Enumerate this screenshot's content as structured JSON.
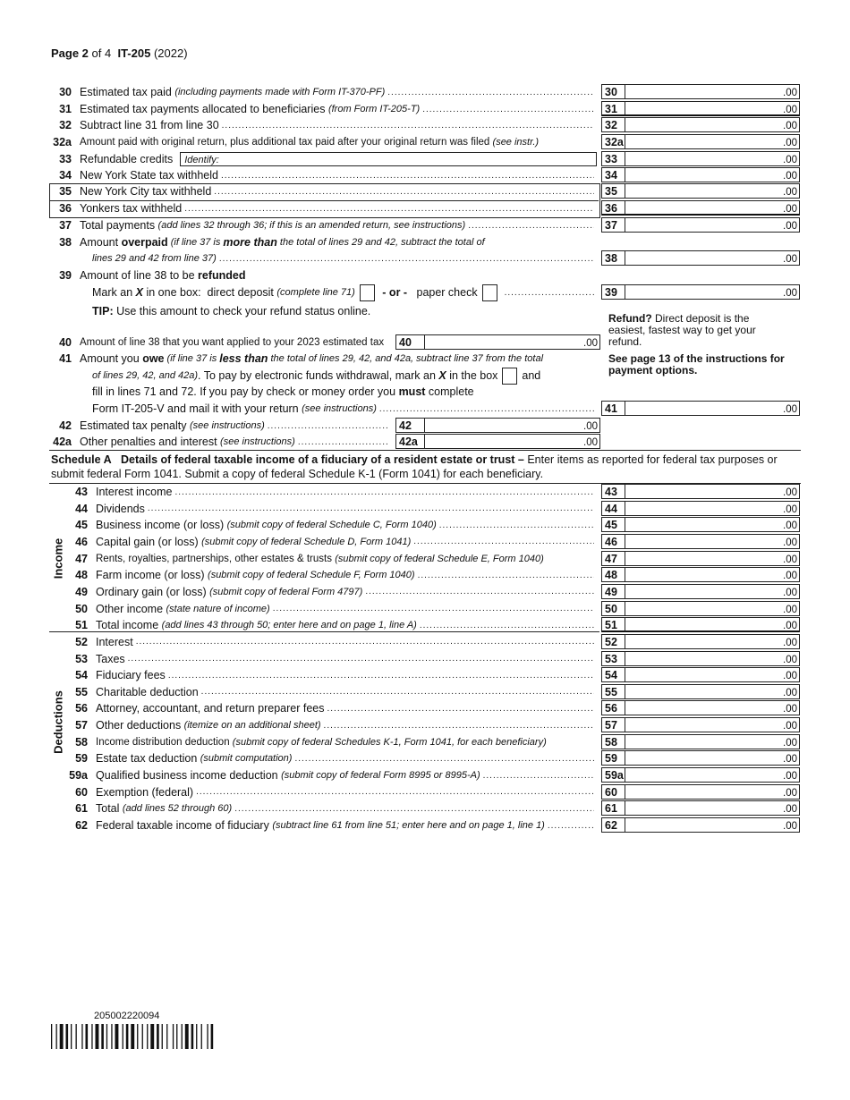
{
  "header": {
    "page": "Page 2",
    "of": "of 4",
    "form": "IT-205",
    "year": "(2022)"
  },
  "cents": ".00",
  "lines": [
    {
      "num": "30",
      "parts": [
        {
          "t": "Estimated tax paid "
        },
        {
          "t": "(including payments made with Form IT-370-PF)",
          "s": "i"
        }
      ],
      "box": "30"
    },
    {
      "num": "31",
      "parts": [
        {
          "t": "Estimated tax payments allocated to beneficiaries "
        },
        {
          "t": "(from Form IT-205-T)",
          "s": "i"
        }
      ],
      "box": "31"
    },
    {
      "num": "32",
      "parts": [
        {
          "t": "Subtract line 31 from line 30"
        }
      ],
      "box": "32"
    },
    {
      "num": "32a",
      "parts": [
        {
          "t": "Amount paid with original return, plus additional tax paid after your original return was filed "
        },
        {
          "t": "(see instr.)",
          "s": "i"
        }
      ],
      "box": "32a",
      "nolead": true
    },
    {
      "num": "33",
      "parts": [
        {
          "t": "Refundable credits"
        }
      ],
      "box": "33",
      "identify": "Identify:"
    },
    {
      "num": "34",
      "parts": [
        {
          "t": "New York State tax withheld"
        }
      ],
      "box": "34"
    },
    {
      "num": "35",
      "parts": [
        {
          "t": "New York City tax withheld"
        }
      ],
      "box": "35"
    },
    {
      "num": "36",
      "parts": [
        {
          "t": "Yonkers tax withheld"
        }
      ],
      "box": "36"
    },
    {
      "num": "37",
      "parts": [
        {
          "t": "Total payments "
        },
        {
          "t": "(add lines 32 through 36; if this is an amended return, see instructions)",
          "s": "i"
        }
      ],
      "box": "37"
    },
    {
      "num": "38",
      "parts": [
        {
          "t": "Amount "
        },
        {
          "t": "overpaid",
          "s": "b"
        },
        {
          "t": " (if line 37 is ",
          "s": "i"
        },
        {
          "t": "more than",
          "s": "bi"
        },
        {
          "t": " the total of lines 29 and 42, subtract the total of",
          "s": "i"
        }
      ],
      "nolead": true
    },
    {
      "num": "",
      "indent": true,
      "parts": [
        {
          "t": "lines 29 and 42 from line 37)",
          "s": "i"
        }
      ],
      "box": "38"
    },
    {
      "num": "39",
      "parts": [
        {
          "t": "Amount of line 38 to be "
        },
        {
          "t": "refunded",
          "s": "b"
        }
      ],
      "nolead": true
    },
    {
      "num": "",
      "indent": true,
      "parts": [
        {
          "t": "Mark an "
        },
        {
          "t": "X",
          "s": "bi"
        },
        {
          "t": " in one box:  direct deposit "
        },
        {
          "t": "(complete line 71)",
          "s": "i"
        },
        {
          "s": "cb",
          "t": ""
        },
        {
          "t": " - or - ",
          "s": "b"
        },
        {
          "t": "  paper check"
        },
        {
          "s": "cb",
          "t": ""
        }
      ],
      "box": "39"
    },
    {
      "num": "",
      "indent": true,
      "parts": [
        {
          "t": "TIP:",
          "s": "b"
        },
        {
          "t": " Use this amount to check your refund status online."
        }
      ],
      "nolead": true
    },
    {
      "num": "40",
      "parts": [
        {
          "t": "Amount of line 38 that you want applied to your 2023 estimated tax"
        }
      ],
      "inner": "40",
      "nolead": true
    },
    {
      "num": "41",
      "parts": [
        {
          "t": "Amount you "
        },
        {
          "t": "owe",
          "s": "b"
        },
        {
          "t": " (if line 37 is ",
          "s": "i"
        },
        {
          "t": "less than",
          "s": "bi"
        },
        {
          "t": " the total of lines 29, 42, and 42a, subtract line 37 from the total",
          "s": "i"
        }
      ],
      "nolead": true
    },
    {
      "num": "",
      "indent": true,
      "parts": [
        {
          "t": "of lines 29, 42, and 42a)",
          "s": "i"
        },
        {
          "t": ". To pay by electronic funds withdrawal, mark an "
        },
        {
          "t": "X",
          "s": "bi"
        },
        {
          "t": " in the box"
        },
        {
          "s": "cb",
          "t": ""
        },
        {
          "t": "and"
        }
      ],
      "nolead": true
    },
    {
      "num": "",
      "indent": true,
      "parts": [
        {
          "t": "fill in lines 71 and 72. If you pay by check or money order you "
        },
        {
          "t": "must",
          "s": "b"
        },
        {
          "t": " complete"
        }
      ],
      "nolead": true
    },
    {
      "num": "",
      "indent": true,
      "parts": [
        {
          "t": "Form IT-205-V and mail it with your return "
        },
        {
          "t": "(see instructions)",
          "s": "i"
        }
      ],
      "box": "41"
    },
    {
      "num": "42",
      "parts": [
        {
          "t": "Estimated tax penalty "
        },
        {
          "t": "(see instructions)",
          "s": "i"
        }
      ],
      "inner": "42"
    },
    {
      "num": "42a",
      "parts": [
        {
          "t": "Other penalties and interest "
        },
        {
          "t": "(see instructions)",
          "s": "i"
        }
      ],
      "inner": "42a"
    }
  ],
  "side_note": {
    "refund_bold": "Refund?",
    "refund_text": " Direct deposit is the easiest, fastest way to get your refund.",
    "payment": "See page 13 of the instructions for payment options."
  },
  "schedule_a": {
    "title": "Schedule A",
    "heading": "Details of federal taxable income of a fiduciary of a resident estate or trust –",
    "intro": " Enter items as reported for federal tax purposes or submit federal Form 1041. Submit a copy of federal Schedule K-1 (Form 1041) for each beneficiary.",
    "income_label": "Income",
    "deductions_label": "Deductions",
    "lines": [
      {
        "num": "43",
        "parts": [
          {
            "t": "Interest income"
          }
        ]
      },
      {
        "num": "44",
        "parts": [
          {
            "t": "Dividends"
          }
        ]
      },
      {
        "num": "45",
        "parts": [
          {
            "t": "Business income (or loss) "
          },
          {
            "t": "(submit copy of federal Schedule C, Form 1040)",
            "s": "i"
          }
        ]
      },
      {
        "num": "46",
        "parts": [
          {
            "t": "Capital gain (or loss) "
          },
          {
            "t": "(submit copy of federal Schedule D, Form 1041)",
            "s": "i"
          }
        ]
      },
      {
        "num": "47",
        "parts": [
          {
            "t": "Rents, royalties, partnerships, other estates & trusts "
          },
          {
            "t": "(submit copy of federal Schedule E, Form 1040)",
            "s": "i"
          }
        ],
        "nolead": true
      },
      {
        "num": "48",
        "parts": [
          {
            "t": "Farm income (or loss) "
          },
          {
            "t": "(submit copy of federal Schedule F, Form 1040)",
            "s": "i"
          }
        ]
      },
      {
        "num": "49",
        "parts": [
          {
            "t": "Ordinary gain (or loss) "
          },
          {
            "t": "(submit copy of federal Form 4797)",
            "s": "i"
          }
        ]
      },
      {
        "num": "50",
        "parts": [
          {
            "t": "Other income "
          },
          {
            "t": "(state nature of income)",
            "s": "i"
          }
        ]
      },
      {
        "num": "51",
        "parts": [
          {
            "t": "Total income "
          },
          {
            "t": "(add lines 43 through 50; enter here and on page 1, line A)",
            "s": "i"
          }
        ]
      },
      {
        "num": "52",
        "parts": [
          {
            "t": "Interest"
          }
        ]
      },
      {
        "num": "53",
        "parts": [
          {
            "t": "Taxes"
          }
        ]
      },
      {
        "num": "54",
        "parts": [
          {
            "t": "Fiduciary fees"
          }
        ]
      },
      {
        "num": "55",
        "parts": [
          {
            "t": "Charitable deduction"
          }
        ]
      },
      {
        "num": "56",
        "parts": [
          {
            "t": "Attorney, accountant, and return preparer fees"
          }
        ]
      },
      {
        "num": "57",
        "parts": [
          {
            "t": "Other deductions "
          },
          {
            "t": "(itemize on an additional sheet)",
            "s": "i"
          }
        ]
      },
      {
        "num": "58",
        "parts": [
          {
            "t": "Income distribution deduction "
          },
          {
            "t": "(submit copy of federal Schedules K-1, Form 1041, for each beneficiary)",
            "s": "i"
          }
        ],
        "nolead": true
      },
      {
        "num": "59",
        "parts": [
          {
            "t": "Estate tax deduction "
          },
          {
            "t": "(submit computation)",
            "s": "i"
          }
        ]
      },
      {
        "num": "59a",
        "parts": [
          {
            "t": "Qualified business income deduction "
          },
          {
            "t": "(submit copy of federal Form 8995 or 8995-A)",
            "s": "i"
          }
        ]
      },
      {
        "num": "60",
        "parts": [
          {
            "t": "Exemption (federal)"
          }
        ]
      },
      {
        "num": "61",
        "parts": [
          {
            "t": "Total "
          },
          {
            "t": "(add lines 52 through 60)",
            "s": "i"
          }
        ]
      },
      {
        "num": "62",
        "parts": [
          {
            "t": "Federal taxable income of fiduciary "
          },
          {
            "t": "(subtract line 61 from line 51; enter here and on page 1, line 1)",
            "s": "i"
          }
        ]
      }
    ]
  },
  "barcode": {
    "number": "205002220094"
  }
}
